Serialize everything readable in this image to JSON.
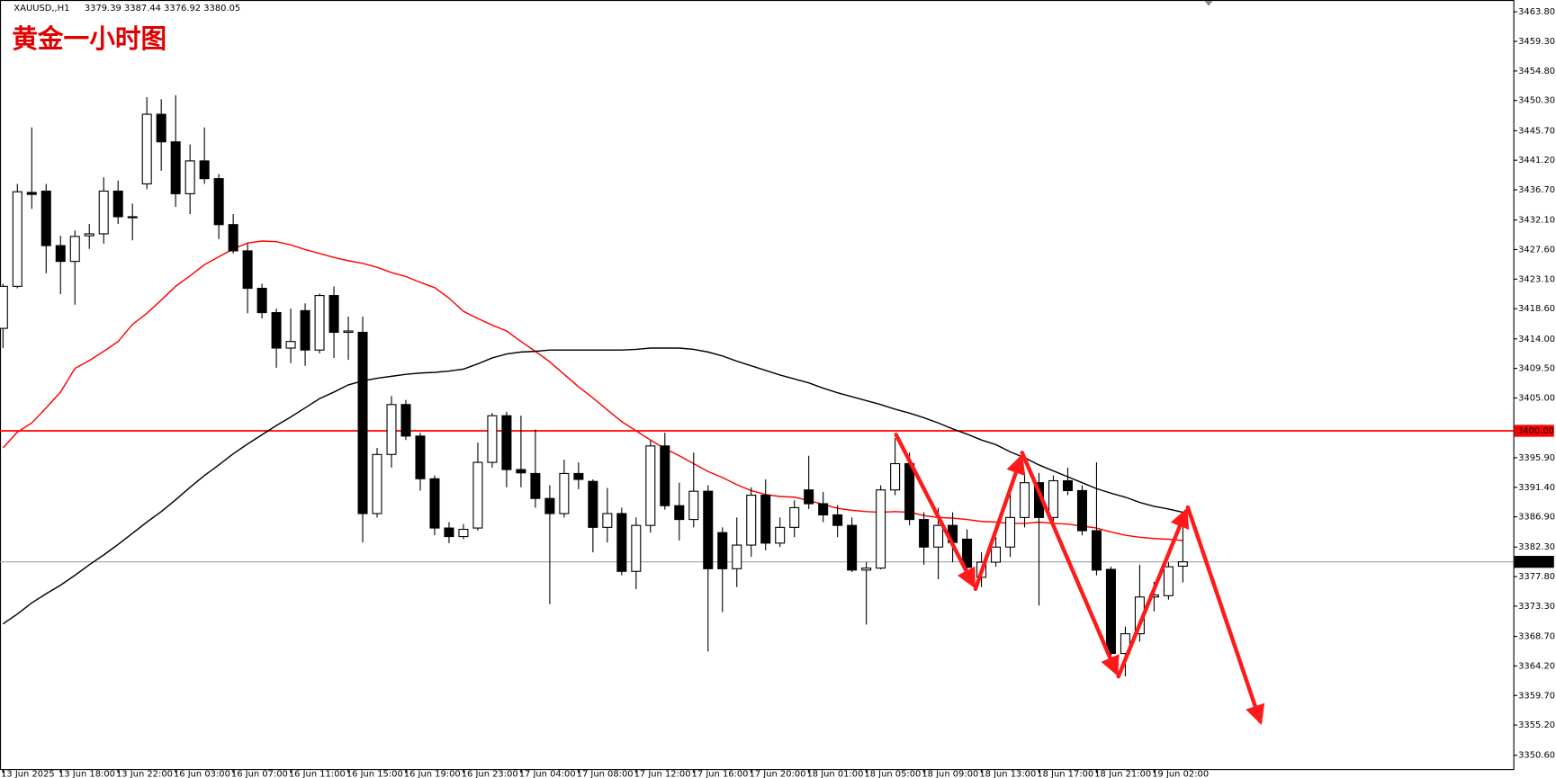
{
  "chart_data": {
    "type": "candlestick",
    "symbol": "XAUUSD,,H1",
    "ohlc_header": [
      "3379.39",
      "3387.44",
      "3376.92",
      "3380.05"
    ],
    "title": "黄金一小时图",
    "categories": [
      "13 Jun 2025",
      null,
      null,
      null,
      "13 Jun 18:00",
      null,
      null,
      null,
      "13 Jun 22:00",
      null,
      null,
      null,
      "16 Jun 03:00",
      null,
      null,
      null,
      "16 Jun 07:00",
      null,
      null,
      null,
      "16 Jun 11:00",
      null,
      null,
      null,
      "16 Jun 15:00",
      null,
      null,
      null,
      "16 Jun 19:00",
      null,
      null,
      null,
      "16 Jun 23:00",
      null,
      null,
      null,
      "17 Jun 04:00",
      null,
      null,
      null,
      "17 Jun 08:00",
      null,
      null,
      null,
      "17 Jun 12:00",
      null,
      null,
      null,
      "17 Jun 16:00",
      null,
      null,
      null,
      "17 Jun 20:00",
      null,
      null,
      null,
      "18 Jun 01:00",
      null,
      null,
      null,
      "18 Jun 05:00",
      null,
      null,
      null,
      "18 Jun 09:00",
      null,
      null,
      null,
      "18 Jun 13:00",
      null,
      null,
      null,
      "18 Jun 17:00",
      null,
      null,
      null,
      "18 Jun 21:00",
      null,
      null,
      null,
      "19 Jun 02:00",
      null,
      null
    ],
    "open": [
      3415.6,
      3422.0,
      3436.3,
      3436.5,
      3428.2,
      3425.8,
      3429.7,
      3430.0,
      3436.5,
      3432.6,
      3437.6,
      3448.2,
      3444.0,
      3436.1,
      3441.1,
      3438.4,
      3431.4,
      3427.4,
      3421.7,
      3418.0,
      3412.6,
      3418.3,
      3412.3,
      3420.6,
      3415.0,
      3415.0,
      3387.4,
      3396.4,
      3404.0,
      3399.2,
      3392.7,
      3385.2,
      3383.9,
      3385.2,
      3395.2,
      3402.3,
      3394.1,
      3393.5,
      3389.7,
      3387.4,
      3393.5,
      3392.3,
      3385.3,
      3387.4,
      3378.6,
      3385.6,
      3397.7,
      3388.6,
      3386.5,
      3390.8,
      3384.5,
      3379.0,
      3382.6,
      3390.2,
      3382.9,
      3385.3,
      3391.0,
      3388.9,
      3387.2,
      3385.6,
      3378.8,
      3379.1,
      3391.0,
      3395.0,
      3386.5,
      3382.3,
      3385.6,
      3383.5,
      3377.7,
      3380.0,
      3382.3,
      3386.8,
      3392.1,
      3386.8,
      3392.4,
      3390.9,
      3384.8,
      3378.9,
      3366.1,
      3369.1,
      3374.7,
      3374.9,
      3379.39
    ],
    "high": [
      3422.4,
      3437.6,
      3446.2,
      3437.6,
      3429.7,
      3430.5,
      3431.5,
      3438.6,
      3438.1,
      3434.6,
      3450.8,
      3450.5,
      3451.1,
      3443.6,
      3446.2,
      3439.1,
      3433.0,
      3428.5,
      3422.4,
      3418.6,
      3418.6,
      3419.4,
      3420.9,
      3422.0,
      3417.4,
      3417.4,
      3397.4,
      3405.3,
      3404.7,
      3399.7,
      3393.2,
      3386.1,
      3385.8,
      3398.2,
      3402.7,
      3402.9,
      3402.3,
      3400.2,
      3391.7,
      3395.6,
      3395.2,
      3392.6,
      3391.3,
      3388.3,
      3386.8,
      3398.5,
      3399.7,
      3392.1,
      3396.7,
      3391.7,
      3385.3,
      3386.8,
      3391.4,
      3392.6,
      3386.8,
      3389.4,
      3396.2,
      3390.7,
      3388.7,
      3386.8,
      3380.0,
      3391.7,
      3398.9,
      3396.7,
      3387.6,
      3388.3,
      3387.6,
      3385.0,
      3381.5,
      3383.8,
      3391.4,
      3393.6,
      3393.6,
      3393.2,
      3394.4,
      3391.7,
      3395.2,
      3379.3,
      3370.2,
      3379.6,
      3377.0,
      3380.0,
      3387.44
    ],
    "low": [
      3412.6,
      3421.7,
      3433.8,
      3424.0,
      3420.8,
      3419.2,
      3427.7,
      3428.5,
      3431.5,
      3429.0,
      3436.8,
      3439.6,
      3434.1,
      3433.0,
      3437.6,
      3429.2,
      3427.0,
      3417.9,
      3417.1,
      3409.6,
      3410.3,
      3409.9,
      3411.8,
      3411.1,
      3410.8,
      3383.0,
      3386.8,
      3394.4,
      3398.6,
      3390.9,
      3384.1,
      3382.9,
      3383.5,
      3384.8,
      3394.4,
      3391.4,
      3391.4,
      3388.3,
      3373.6,
      3386.8,
      3391.1,
      3381.5,
      3383.0,
      3378.0,
      3375.9,
      3384.5,
      3388.0,
      3383.3,
      3385.3,
      3366.4,
      3372.4,
      3376.2,
      3380.8,
      3381.8,
      3382.3,
      3383.8,
      3388.1,
      3386.1,
      3383.8,
      3378.5,
      3370.5,
      3378.9,
      3390.2,
      3385.6,
      3379.6,
      3377.4,
      3380.0,
      3377.0,
      3376.2,
      3379.3,
      3380.8,
      3385.3,
      3373.4,
      3385.6,
      3390.2,
      3384.1,
      3378.0,
      3364.4,
      3362.6,
      3367.9,
      3372.5,
      3374.3,
      3376.92
    ],
    "close": [
      3422.0,
      3436.4,
      3436.0,
      3428.2,
      3425.8,
      3429.6,
      3430.0,
      3436.5,
      3432.6,
      3432.5,
      3448.2,
      3444.0,
      3436.1,
      3441.1,
      3438.4,
      3431.4,
      3427.4,
      3421.7,
      3418.0,
      3412.6,
      3413.6,
      3412.3,
      3420.6,
      3415.0,
      3415.2,
      3387.4,
      3396.4,
      3404.0,
      3399.2,
      3392.7,
      3385.2,
      3383.9,
      3385.0,
      3395.2,
      3402.3,
      3394.1,
      3393.6,
      3389.7,
      3387.4,
      3393.5,
      3392.6,
      3385.3,
      3387.4,
      3378.6,
      3385.6,
      3397.7,
      3388.6,
      3386.5,
      3390.8,
      3379.0,
      3379.0,
      3382.6,
      3390.2,
      3382.9,
      3385.3,
      3388.3,
      3388.9,
      3387.2,
      3385.6,
      3378.8,
      3379.1,
      3391.0,
      3395.0,
      3386.5,
      3382.3,
      3385.6,
      3383.0,
      3379.2,
      3380.0,
      3382.3,
      3386.8,
      3392.1,
      3386.8,
      3392.4,
      3390.9,
      3384.8,
      3378.8,
      3366.1,
      3369.1,
      3374.7,
      3375.0,
      3379.3,
      3380.05
    ],
    "moving_averages": [
      {
        "color": "#ff0000",
        "values": [
          3397.4,
          3399.8,
          3401.2,
          3403.5,
          3405.9,
          3409.5,
          3410.7,
          3412.1,
          3413.6,
          3416.2,
          3417.9,
          3419.9,
          3422.0,
          3423.6,
          3425.3,
          3426.5,
          3427.7,
          3428.6,
          3428.9,
          3428.8,
          3428.3,
          3427.6,
          3427.0,
          3426.4,
          3425.9,
          3425.5,
          3424.9,
          3424.1,
          3423.5,
          3422.6,
          3421.8,
          3420.2,
          3418.2,
          3417.1,
          3416.1,
          3415.2,
          3413.6,
          3412.1,
          3410.5,
          3408.6,
          3406.7,
          3405.0,
          3403.2,
          3401.4,
          3400.0,
          3398.6,
          3397.3,
          3396.2,
          3395.0,
          3393.8,
          3392.9,
          3391.8,
          3390.9,
          3390.3,
          3390.0,
          3389.9,
          3389.4,
          3388.8,
          3388.2,
          3387.9,
          3387.7,
          3387.6,
          3387.7,
          3387.6,
          3387.1,
          3386.8,
          3386.7,
          3386.5,
          3386.2,
          3386.1,
          3385.9,
          3385.9,
          3386.1,
          3385.9,
          3385.8,
          3385.5,
          3385.2,
          3384.6,
          3384.1,
          3383.8,
          3383.6,
          3383.5,
          3383.3
        ]
      },
      {
        "color": "#000000",
        "values": [
          3370.6,
          3372.1,
          3373.8,
          3375.2,
          3376.5,
          3378.0,
          3379.6,
          3381.1,
          3382.7,
          3384.4,
          3386.1,
          3387.7,
          3389.5,
          3391.4,
          3393.2,
          3394.8,
          3396.5,
          3398.0,
          3399.4,
          3400.8,
          3402.1,
          3403.5,
          3404.9,
          3405.9,
          3407.0,
          3407.6,
          3408.0,
          3408.3,
          3408.6,
          3408.8,
          3408.9,
          3409.1,
          3409.4,
          3410.2,
          3411.1,
          3411.7,
          3412.0,
          3412.1,
          3412.3,
          3412.3,
          3412.3,
          3412.3,
          3412.3,
          3412.3,
          3412.4,
          3412.6,
          3412.6,
          3412.6,
          3412.4,
          3412.0,
          3411.4,
          3410.6,
          3409.9,
          3409.2,
          3408.5,
          3407.9,
          3407.3,
          3406.5,
          3405.8,
          3405.2,
          3404.6,
          3404.0,
          3403.3,
          3402.7,
          3402.0,
          3401.2,
          3400.3,
          3399.5,
          3398.6,
          3397.9,
          3396.8,
          3395.9,
          3394.8,
          3393.9,
          3393.0,
          3392.1,
          3391.2,
          3390.5,
          3389.9,
          3389.1,
          3388.5,
          3388.1,
          3387.6
        ]
      }
    ],
    "price_lines": [
      {
        "value": 3400,
        "label": "3400.00",
        "color": "#ff0000"
      },
      {
        "value": 3380.05,
        "label": "3380.05",
        "color": "#9aa5ae"
      }
    ],
    "ylim": [
      3348.5,
      3465.6
    ],
    "yticks": [
      {
        "value": 3463.8,
        "label": "3463.80"
      },
      {
        "value": 3459.3,
        "label": "3459.30"
      },
      {
        "value": 3454.8,
        "label": "3454.80"
      },
      {
        "value": 3450.3,
        "label": "3450.30"
      },
      {
        "value": 3445.7,
        "label": "3445.70"
      },
      {
        "value": 3441.2,
        "label": "3441.20"
      },
      {
        "value": 3436.7,
        "label": "3436.70"
      },
      {
        "value": 3432.1,
        "label": "3432.10"
      },
      {
        "value": 3427.6,
        "label": "3427.60"
      },
      {
        "value": 3423.1,
        "label": "3423.10"
      },
      {
        "value": 3418.6,
        "label": "3418.60"
      },
      {
        "value": 3414,
        "label": "3414.00"
      },
      {
        "value": 3409.5,
        "label": "3409.50"
      },
      {
        "value": 3405,
        "label": "3405.00"
      },
      {
        "value": 3395.9,
        "label": "3395.90"
      },
      {
        "value": 3391.4,
        "label": "3391.40"
      },
      {
        "value": 3386.9,
        "label": "3386.90"
      },
      {
        "value": 3382.3,
        "label": "3382.30"
      },
      {
        "value": 3377.8,
        "label": "3377.80"
      },
      {
        "value": 3373.3,
        "label": "3373.30"
      },
      {
        "value": 3368.7,
        "label": "3368.70"
      },
      {
        "value": 3364.2,
        "label": "3364.20"
      },
      {
        "value": 3359.7,
        "label": "3359.70"
      },
      {
        "value": 3355.2,
        "label": "3355.20"
      },
      {
        "value": 3350.6,
        "label": "3350.60"
      }
    ],
    "up_color": "#ffffff",
    "down_color": "#000000"
  }
}
